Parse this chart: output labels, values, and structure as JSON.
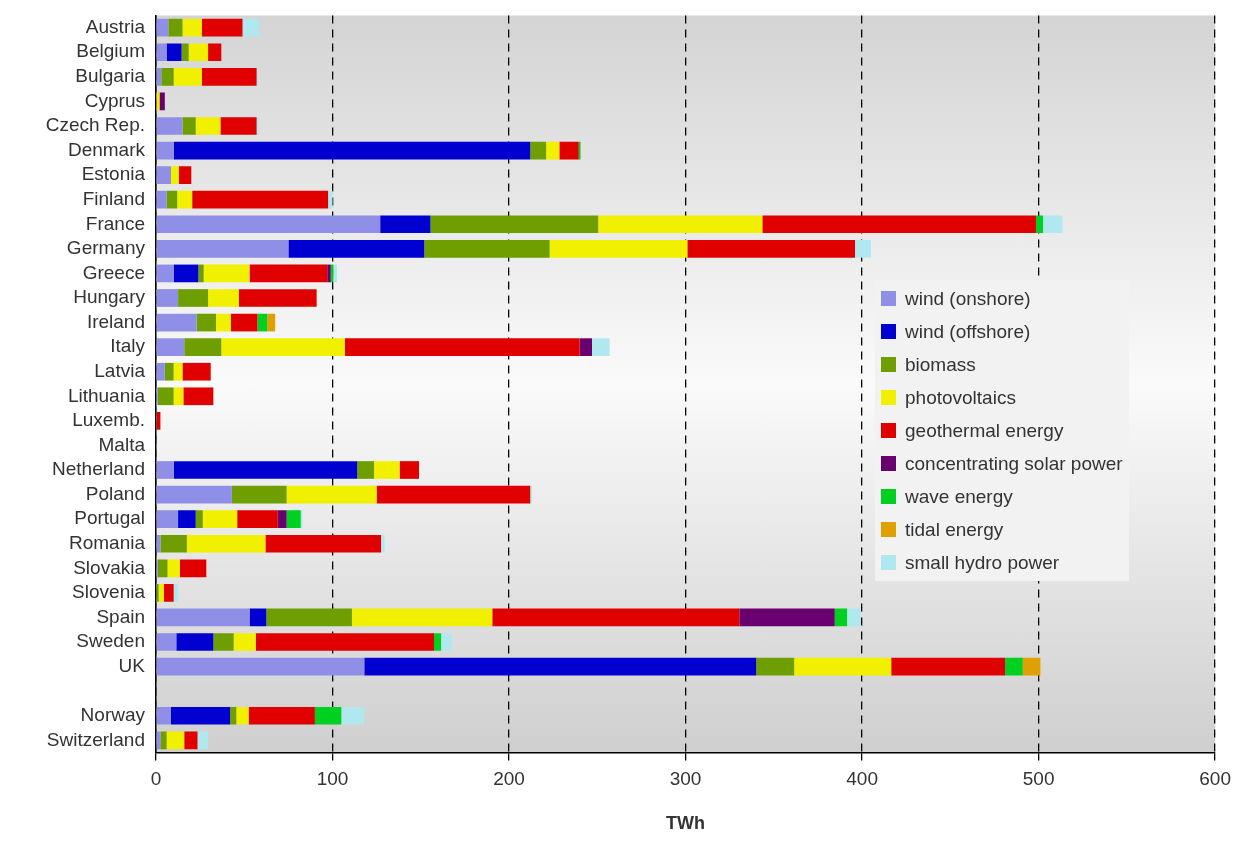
{
  "chart_data": {
    "type": "bar",
    "orientation": "horizontal",
    "stacked": true,
    "xlabel": "TWh",
    "categories": [
      "Austria",
      "Belgium",
      "Bulgaria",
      "Cyprus",
      "Czech Rep.",
      "Denmark",
      "Estonia",
      "Finland",
      "France",
      "Germany",
      "Greece",
      "Hungary",
      "Ireland",
      "Italy",
      "Latvia",
      "Lithuania",
      "Luxemb.",
      "Malta",
      "Netherland",
      "Poland",
      "Portugal",
      "Romania",
      "Slovakia",
      "Slovenia",
      "Spain",
      "Sweden",
      "UK",
      null,
      "Norway",
      "Switzerland"
    ],
    "xlim": [
      0,
      600
    ],
    "xticks": [
      0,
      100,
      200,
      300,
      400,
      500,
      600
    ],
    "grid": "x",
    "legend": "right",
    "series": [
      {
        "name": "wind (onshore)",
        "color": "#8f8fe8",
        "values": [
          7,
          6,
          3,
          null,
          15,
          10,
          8.5,
          6,
          127,
          75,
          10,
          12.5,
          23,
          16,
          5,
          1,
          null,
          null,
          10,
          43,
          12.5,
          2.5,
          1,
          null,
          53,
          11.5,
          118,
          null,
          8.5,
          2.5
        ]
      },
      {
        "name": "wind (offshore)",
        "color": "#0000d0",
        "values": [
          null,
          8.5,
          null,
          null,
          null,
          202,
          null,
          null,
          28.5,
          77,
          14,
          null,
          null,
          null,
          null,
          null,
          null,
          null,
          104,
          null,
          10,
          null,
          null,
          null,
          9.5,
          21,
          222,
          null,
          33.5,
          null
        ]
      },
      {
        "name": "biomass",
        "color": "#6f9e00",
        "values": [
          8,
          4,
          7,
          null,
          7.5,
          9,
          null,
          6,
          95,
          71,
          3,
          17,
          11,
          21,
          5,
          9,
          null,
          null,
          9.5,
          31,
          4,
          15,
          5.5,
          1.5,
          48.5,
          11.5,
          21.5,
          null,
          3.5,
          3.5
        ]
      },
      {
        "name": "photovoltaics",
        "color": "#f0f000",
        "values": [
          11,
          11,
          16,
          2,
          14,
          7.5,
          4.5,
          8.5,
          93,
          78,
          26,
          17.5,
          8.5,
          70,
          5,
          5.5,
          null,
          null,
          14.5,
          51,
          19.5,
          44.5,
          7,
          3,
          79.5,
          12.5,
          55,
          null,
          7,
          10
        ]
      },
      {
        "name": "geothermal energy",
        "color": "#e00000",
        "values": [
          23,
          7.5,
          31,
          null,
          20.5,
          11,
          7,
          77,
          155,
          95,
          44,
          44,
          15,
          133,
          16,
          17,
          2.5,
          null,
          11,
          87,
          23,
          65.5,
          15,
          5.5,
          140,
          101,
          64.5,
          null,
          37.5,
          7.5
        ]
      },
      {
        "name": "concentrating solar power",
        "color": "#6a0070",
        "values": [
          null,
          null,
          null,
          3,
          null,
          null,
          null,
          null,
          null,
          null,
          2,
          null,
          null,
          7,
          null,
          null,
          null,
          null,
          null,
          null,
          5,
          null,
          null,
          null,
          54,
          null,
          null,
          null,
          null,
          null
        ]
      },
      {
        "name": "wave energy",
        "color": "#00d020",
        "values": [
          null,
          null,
          null,
          null,
          null,
          1,
          null,
          null,
          4,
          null,
          1.5,
          null,
          5.5,
          null,
          null,
          null,
          null,
          null,
          null,
          null,
          8,
          null,
          null,
          null,
          7,
          4,
          10,
          null,
          15,
          null
        ]
      },
      {
        "name": "tidal energy",
        "color": "#e0a000",
        "values": [
          null,
          null,
          null,
          null,
          null,
          null,
          null,
          null,
          null,
          null,
          null,
          null,
          4.5,
          null,
          null,
          null,
          null,
          null,
          null,
          null,
          null,
          null,
          null,
          null,
          null,
          null,
          10,
          null,
          null,
          null
        ]
      },
      {
        "name": "small hydro power",
        "color": "#b0e8f0",
        "values": [
          9.5,
          null,
          1,
          null,
          1.5,
          null,
          null,
          2.5,
          11,
          9,
          2,
          null,
          null,
          10,
          null,
          null,
          null,
          null,
          null,
          1,
          1,
          2,
          null,
          2.5,
          7.5,
          6,
          null,
          null,
          13,
          6
        ]
      }
    ]
  }
}
